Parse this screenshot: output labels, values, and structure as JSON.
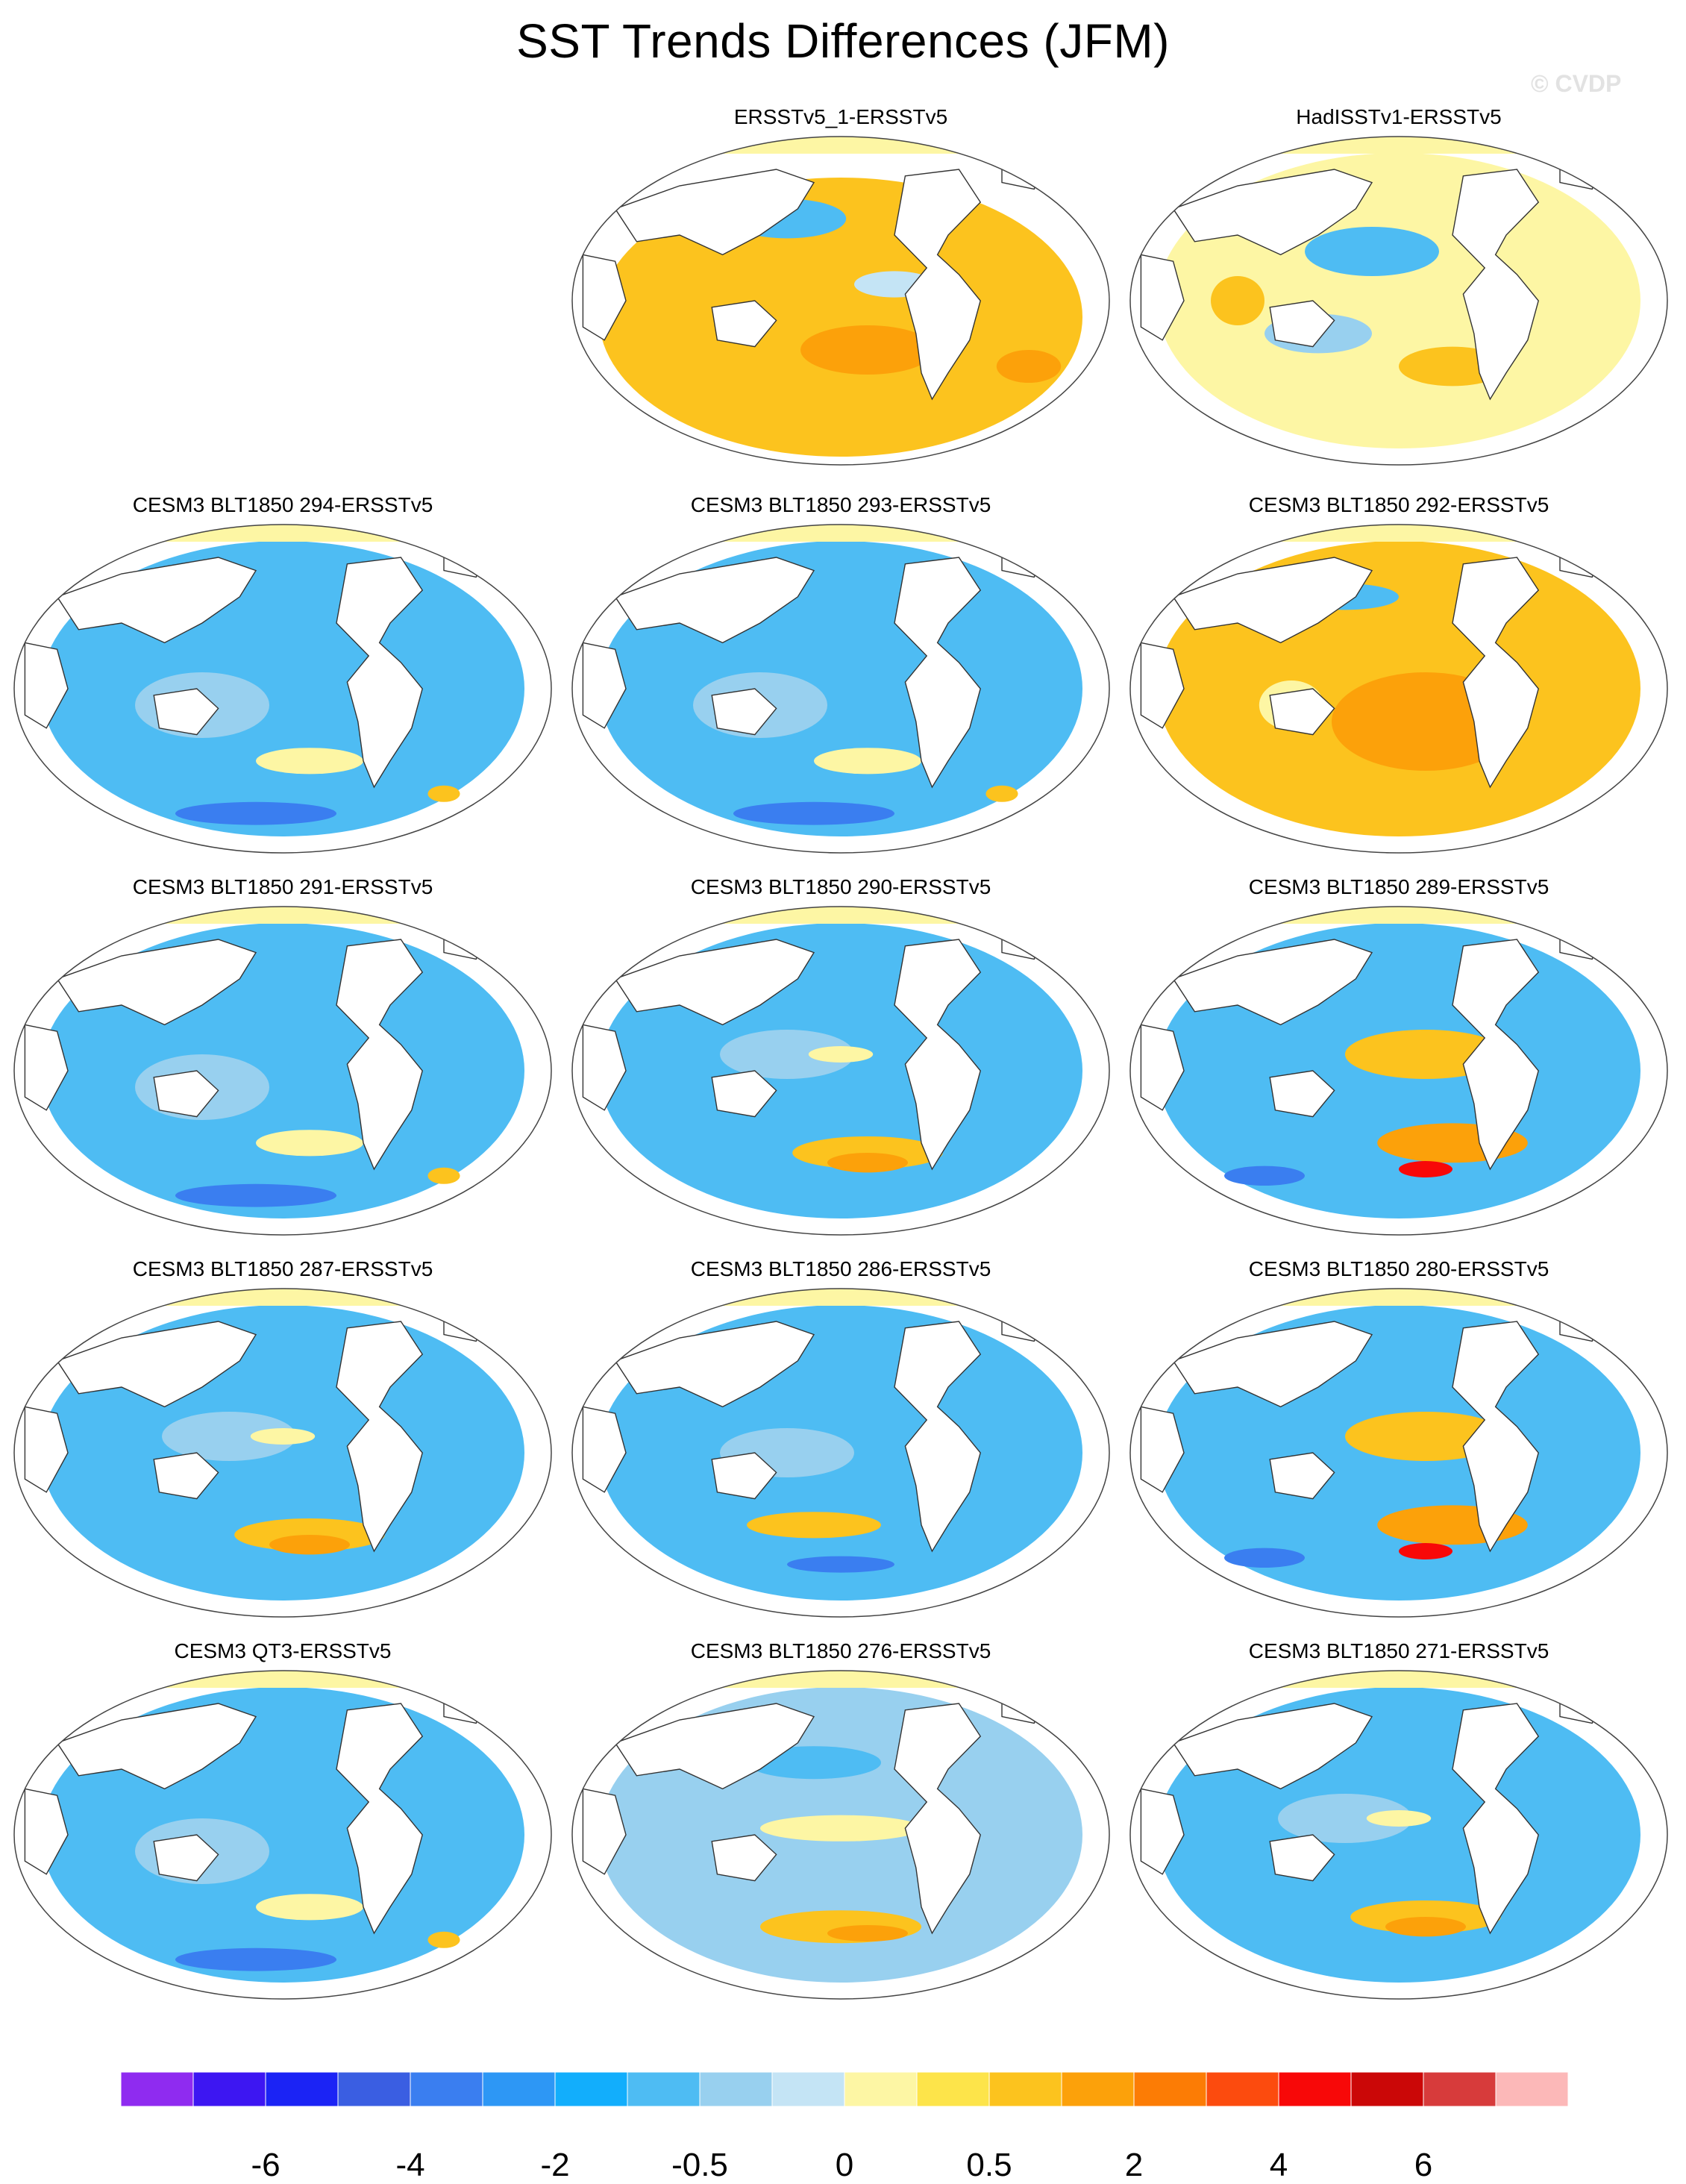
{
  "figure": {
    "title": "SST Trends Differences (JFM)",
    "watermark": "© CVDP"
  },
  "panels": [
    {
      "title": "ERSSTv5_1-ERSSTv5",
      "pattern": "warm-mixed"
    },
    {
      "title": "HadISSTv1-ERSSTv5",
      "pattern": "mixed"
    },
    {
      "title": "CESM3 BLT1850 294-ERSSTv5",
      "pattern": "cool"
    },
    {
      "title": "CESM3 BLT1850 293-ERSSTv5",
      "pattern": "cool"
    },
    {
      "title": "CESM3 BLT1850 292-ERSSTv5",
      "pattern": "warm"
    },
    {
      "title": "CESM3 BLT1850 291-ERSSTv5",
      "pattern": "cool"
    },
    {
      "title": "CESM3 BLT1850 290-ERSSTv5",
      "pattern": "cool-southwarm"
    },
    {
      "title": "CESM3 BLT1850 289-ERSSTv5",
      "pattern": "southwarm-strong"
    },
    {
      "title": "CESM3 BLT1850 287-ERSSTv5",
      "pattern": "cool-southwarm"
    },
    {
      "title": "CESM3 BLT1850 286-ERSSTv5",
      "pattern": "cool-southband"
    },
    {
      "title": "CESM3 BLT1850 280-ERSSTv5",
      "pattern": "southwarm-strong"
    },
    {
      "title": "CESM3 QT3-ERSSTv5",
      "pattern": "cool"
    },
    {
      "title": "CESM3 BLT1850 276-ERSSTv5",
      "pattern": "mixed-southwarm"
    },
    {
      "title": "CESM3 BLT1850 271-ERSSTv5",
      "pattern": "cool-southwarm"
    }
  ],
  "colorbar": {
    "colors": [
      "#8f2bf0",
      "#3d16f2",
      "#1b23f5",
      "#3a5ee2",
      "#3a7ef0",
      "#2d97f5",
      "#12aefc",
      "#4ebcf3",
      "#98d0ef",
      "#c4e4f5",
      "#fdf6a4",
      "#fde44a",
      "#fcc31e",
      "#fca10a",
      "#fc7c05",
      "#fc4b0e",
      "#f80808",
      "#cb0707",
      "#d73b3b",
      "#fcb8b8"
    ],
    "labels": [
      "-6",
      "-4",
      "-2",
      "-0.5",
      "0",
      "0.5",
      "2",
      "4",
      "6"
    ],
    "label_boundaries": [
      2,
      4,
      6,
      8,
      10,
      12,
      14,
      16,
      18
    ]
  },
  "map_colors": {
    "ocean_cool": "#4ebcf3",
    "ocean_cool_light": "#98d0ef",
    "ocean_cold": "#3a7ef0",
    "ocean_neutral": "#c4e4f5",
    "warm_light": "#fdf6a4",
    "warm": "#fcc31e",
    "warm_strong": "#fca10a",
    "hot": "#f80808",
    "land": "#ffffff",
    "arctic": "#fdf6a4"
  }
}
